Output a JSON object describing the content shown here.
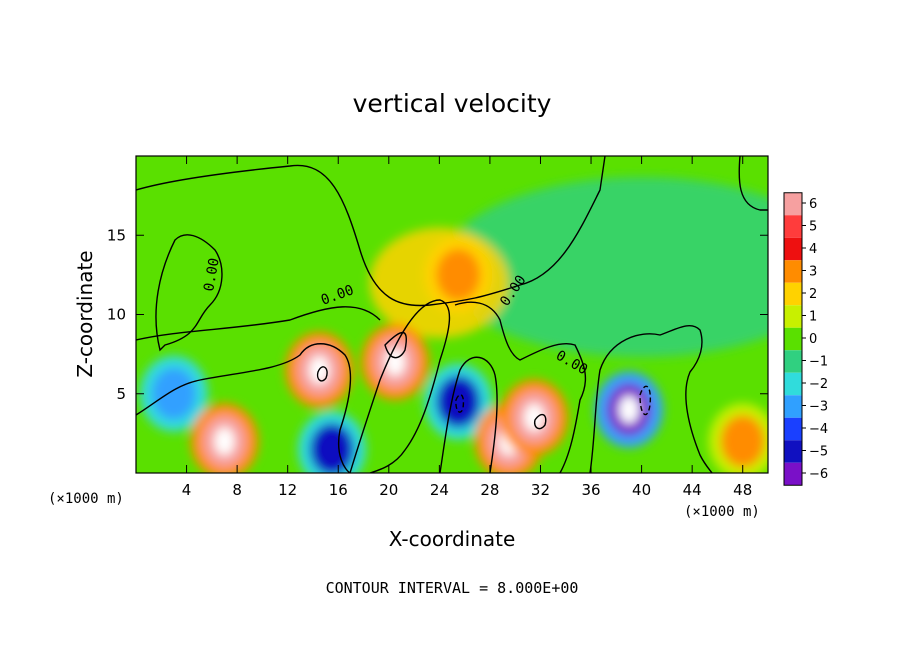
{
  "chart_data": {
    "type": "heatmap",
    "title": "vertical velocity",
    "xlabel": "X-coordinate",
    "ylabel": "Z-coordinate",
    "x_unit": "(×1000 m)",
    "xlim": [
      0,
      50
    ],
    "ylim": [
      0,
      20
    ],
    "x_ticks": [
      4,
      8,
      12,
      16,
      20,
      24,
      28,
      32,
      36,
      40,
      44,
      48
    ],
    "y_ticks": [
      5,
      10,
      15
    ],
    "colorbar": {
      "ticks": [
        6,
        5,
        4,
        3,
        2,
        1,
        0,
        -1,
        -2,
        -3,
        -4,
        -5,
        -6
      ],
      "labels": [
        "6",
        "5",
        "4",
        "3",
        "2",
        "1",
        "0",
        "−1",
        "−2",
        "−3",
        "−4",
        "−5",
        "−6"
      ],
      "colors": [
        "#f6a0a0",
        "#ff3c3c",
        "#ee1010",
        "#ff8c00",
        "#ffd200",
        "#c8f000",
        "#5ae000",
        "#30d080",
        "#30dcdc",
        "#30a0ff",
        "#1a40ff",
        "#1010c0",
        "#7a10c8"
      ]
    },
    "contour_label": "0.00",
    "annotation": "CONTOUR INTERVAL = 8.000E+00",
    "features": [
      {
        "x": 3.0,
        "z": 5.0,
        "w": -3.5
      },
      {
        "x": 7.0,
        "z": 2.0,
        "w": 6.0
      },
      {
        "x": 14.5,
        "z": 6.5,
        "w": 6.0
      },
      {
        "x": 15.5,
        "z": 1.5,
        "w": -5.0
      },
      {
        "x": 20.5,
        "z": 7.0,
        "w": 6.0
      },
      {
        "x": 25.5,
        "z": 12.5,
        "w": 3.0
      },
      {
        "x": 25.5,
        "z": 4.5,
        "w": -5.0
      },
      {
        "x": 29.5,
        "z": 2.0,
        "w": 6.0
      },
      {
        "x": 31.5,
        "z": 3.5,
        "w": 6.0
      },
      {
        "x": 39.0,
        "z": 4.0,
        "w": -6.0
      },
      {
        "x": 48.0,
        "z": 2.0,
        "w": 2.5
      }
    ]
  }
}
